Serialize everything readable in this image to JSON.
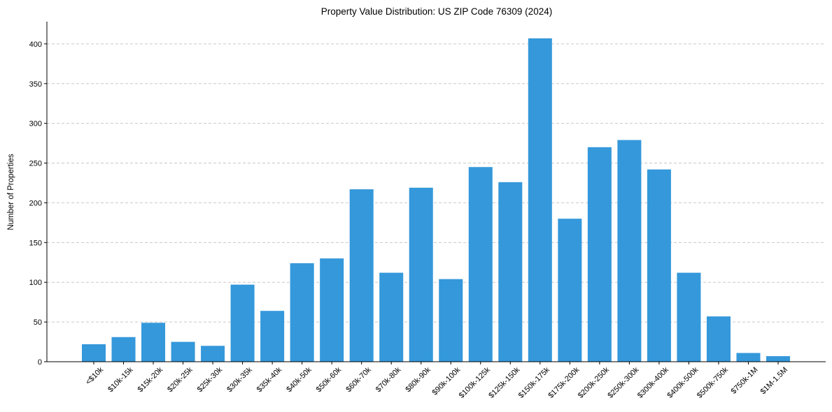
{
  "chart_data": {
    "type": "bar",
    "title": "Property Value Distribution: US ZIP Code 76309 (2024)",
    "xlabel": "",
    "ylabel": "Number of Properties",
    "ylim": [
      0,
      428
    ],
    "yticks": [
      0,
      50,
      100,
      150,
      200,
      250,
      300,
      350,
      400
    ],
    "grid": "y-dashed",
    "bar_color": "#3498db",
    "categories": [
      "<$10k",
      "$10k-15k",
      "$15k-20k",
      "$20k-25k",
      "$25k-30k",
      "$30k-35k",
      "$35k-40k",
      "$40k-50k",
      "$50k-60k",
      "$60k-70k",
      "$70k-80k",
      "$80k-90k",
      "$90k-100k",
      "$100k-125k",
      "$125k-150k",
      "$150k-175k",
      "$175k-200k",
      "$200k-250k",
      "$250k-300k",
      "$300k-400k",
      "$400k-500k",
      "$500k-750k",
      "$750k-1M",
      "$1M-1.5M"
    ],
    "values": [
      22,
      31,
      49,
      25,
      20,
      97,
      64,
      124,
      130,
      217,
      112,
      219,
      104,
      245,
      226,
      407,
      180,
      270,
      279,
      242,
      112,
      57,
      11,
      7
    ]
  }
}
